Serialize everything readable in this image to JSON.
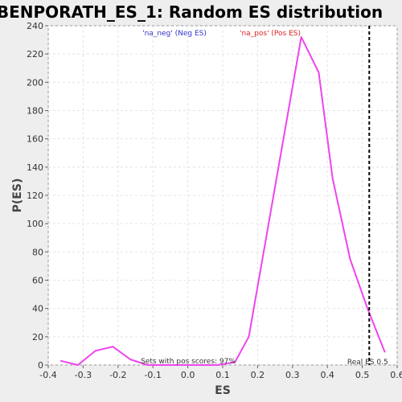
{
  "chart_data": {
    "type": "line",
    "title": "BENPORATH_ES_1: Random ES distribution",
    "xlabel": "ES",
    "ylabel": "P(ES)",
    "xlim": [
      -0.4,
      0.6
    ],
    "ylim": [
      0,
      240
    ],
    "x_ticks": [
      "-0.4",
      "-0.3",
      "-0.2",
      "-0.1",
      "0.0",
      "0.1",
      "0.2",
      "0.3",
      "0.4",
      "0.5",
      "0.6"
    ],
    "y_ticks": [
      "0",
      "20",
      "40",
      "60",
      "80",
      "100",
      "120",
      "140",
      "160",
      "180",
      "200",
      "220",
      "240"
    ],
    "grid": true,
    "series": [
      {
        "color": "#ee44ee",
        "x": [
          -0.365,
          -0.315,
          -0.265,
          -0.215,
          -0.165,
          -0.115,
          0.085,
          0.135,
          0.175,
          0.325,
          0.375,
          0.415,
          0.465,
          0.515,
          0.565
        ],
        "y": [
          3,
          0,
          10,
          13,
          4,
          0,
          0,
          2,
          20,
          232,
          207,
          132,
          75,
          40,
          9
        ]
      }
    ],
    "legend": [
      {
        "label": "'na_neg' (Neg ES)",
        "color": "#3333cc"
      },
      {
        "label": "'na_pos' (Pos ES)",
        "color": "#dd2222"
      }
    ],
    "real_es": {
      "value": 0.52,
      "label": "Real ES 0.5"
    },
    "annotation": "Sets with pos scores: 97%"
  }
}
